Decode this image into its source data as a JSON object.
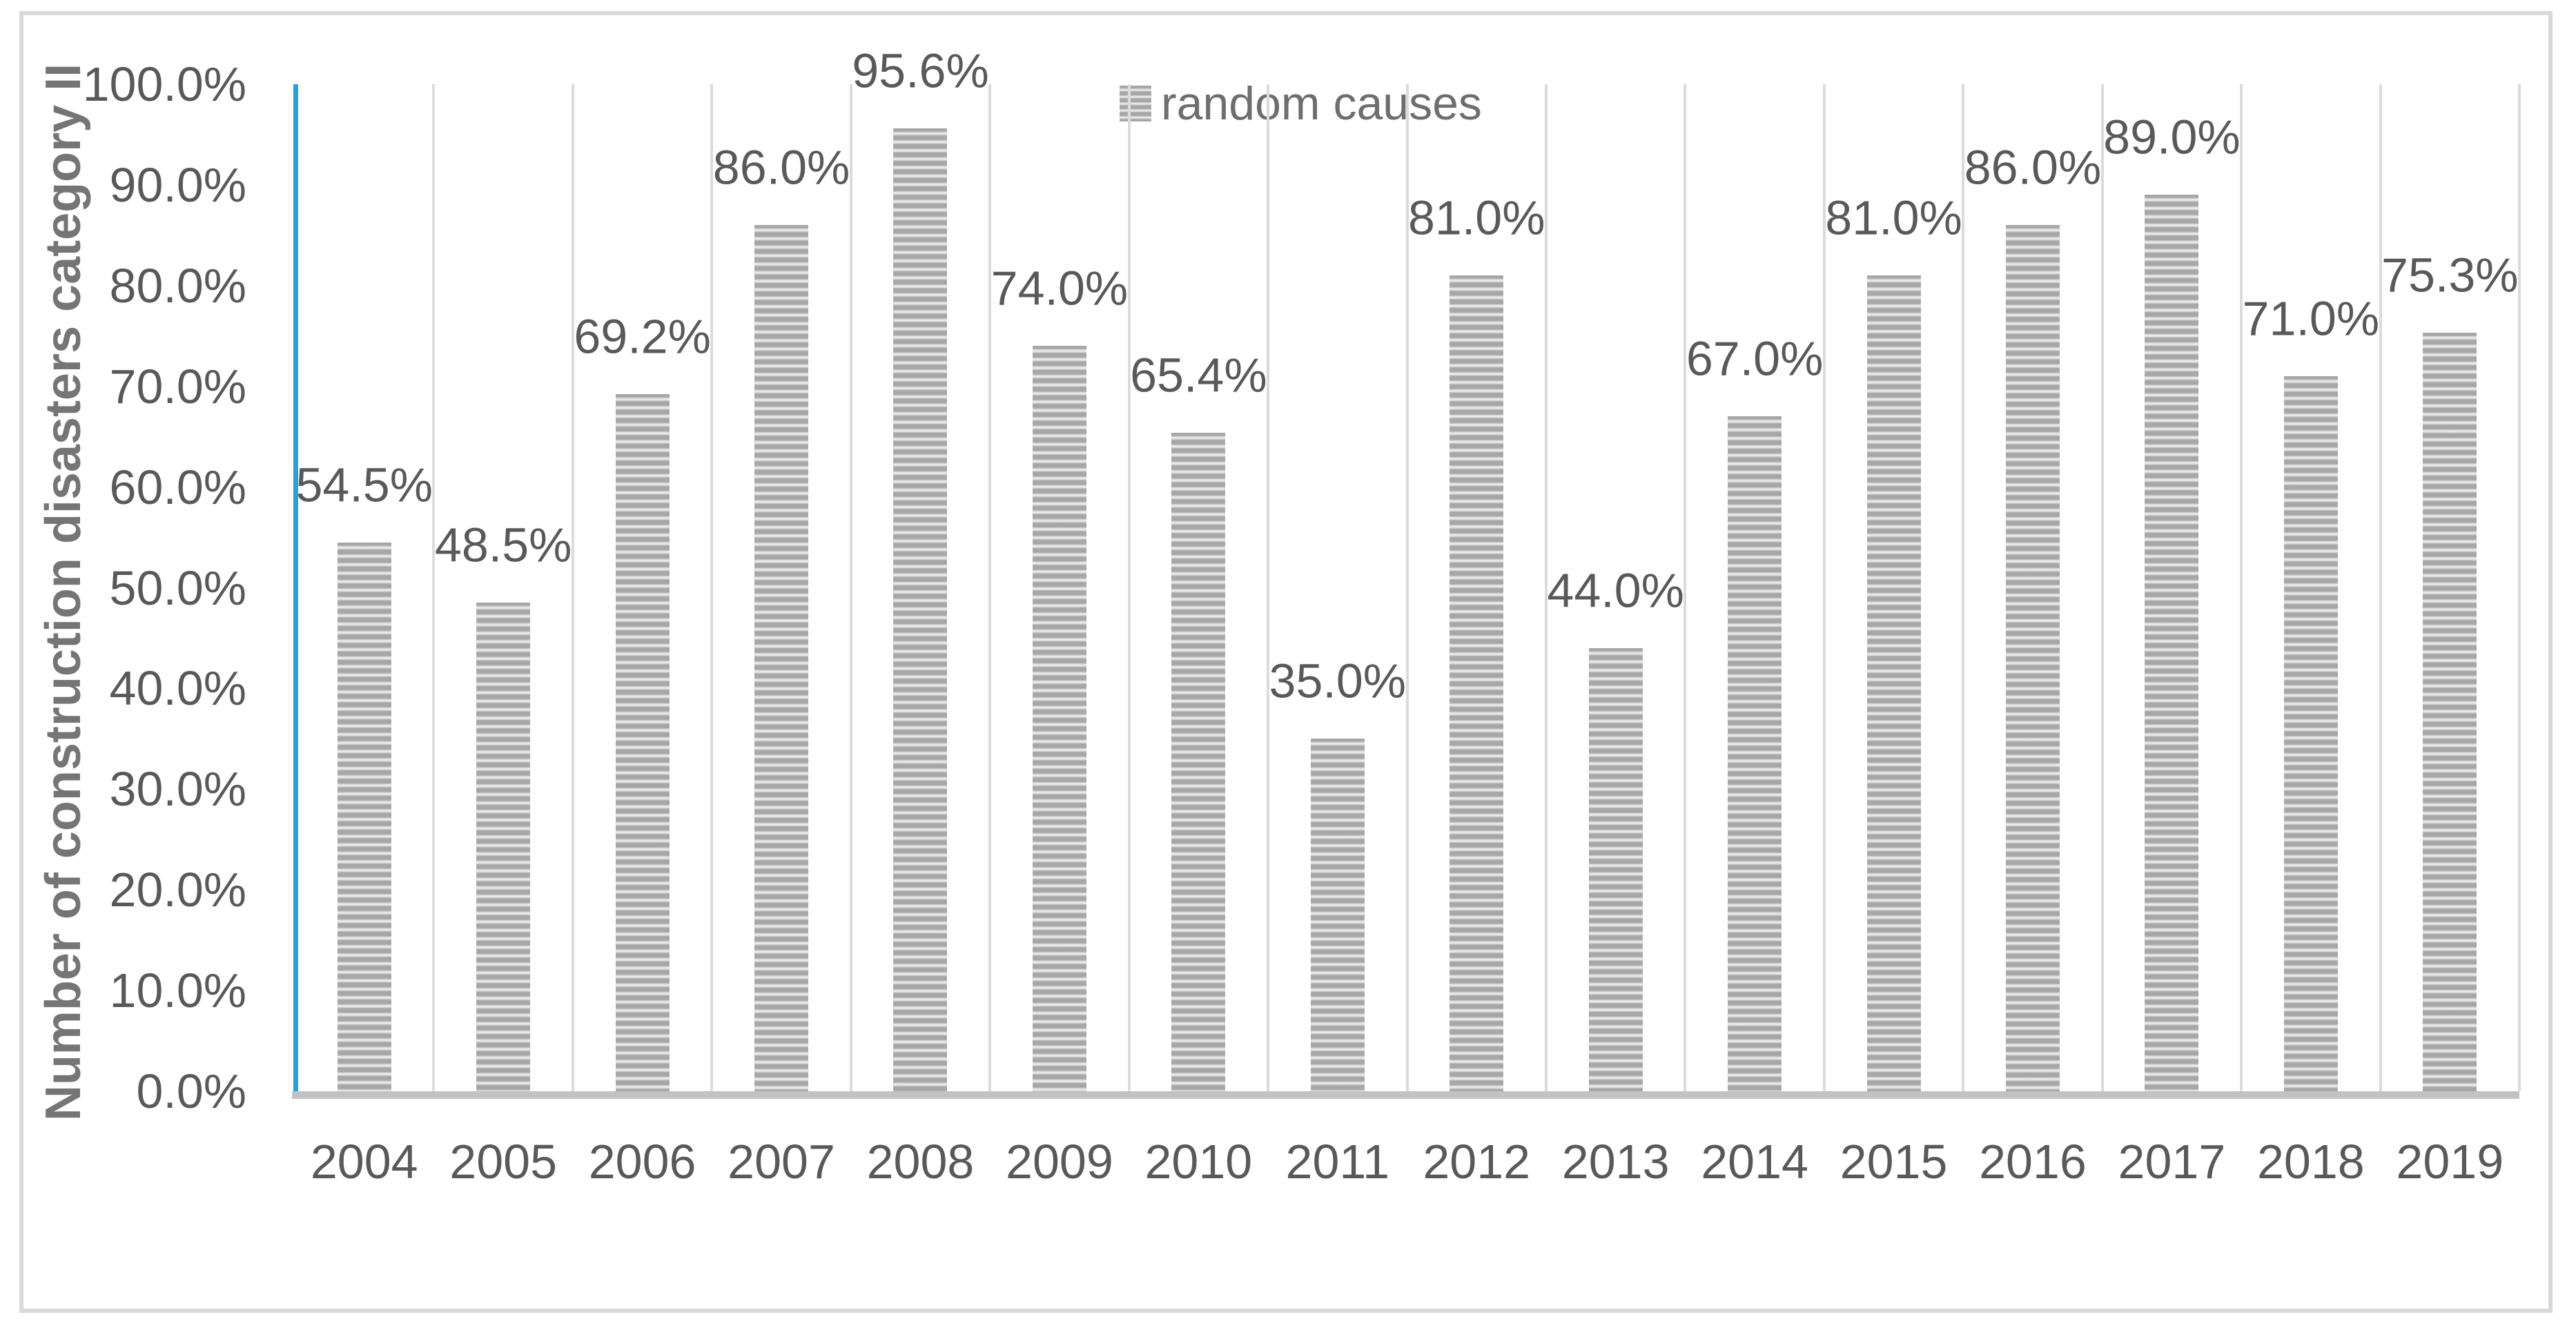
{
  "chart_data": {
    "type": "bar",
    "title": "",
    "xlabel": "",
    "ylabel": "Number of construction disasters category II",
    "categories": [
      "2004",
      "2005",
      "2006",
      "2007",
      "2008",
      "2009",
      "2010",
      "2011",
      "2012",
      "2013",
      "2014",
      "2015",
      "2016",
      "2017",
      "2018",
      "2019"
    ],
    "series": [
      {
        "name": "random causes",
        "values": [
          54.5,
          48.5,
          69.2,
          86.0,
          95.6,
          74.0,
          65.4,
          35.0,
          81.0,
          44.0,
          67.0,
          81.0,
          86.0,
          89.0,
          71.0,
          75.3
        ]
      }
    ],
    "data_labels": [
      "54.5%",
      "48.5%",
      "69.2%",
      "86.0%",
      "95.6%",
      "74.0%",
      "65.4%",
      "35.0%",
      "81.0%",
      "44.0%",
      "67.0%",
      "81.0%",
      "86.0%",
      "89.0%",
      "71.0%",
      "75.3%"
    ],
    "y_ticks": [
      "0.0%",
      "10.0%",
      "20.0%",
      "30.0%",
      "40.0%",
      "50.0%",
      "60.0%",
      "70.0%",
      "80.0%",
      "90.0%",
      "100.0%"
    ],
    "y_tick_values": [
      0,
      10,
      20,
      30,
      40,
      50,
      60,
      70,
      80,
      90,
      100
    ],
    "ylim": [
      0,
      100
    ],
    "grid": "vertical-only",
    "legend": {
      "label": "random causes",
      "position": "top-center",
      "swatch": "horizontal-striped-gray"
    }
  },
  "colors": {
    "bar_stripe_dark": "#a7a7a7",
    "bar_stripe_light": "#f0f0f0",
    "y_axis_line": "#2d9fd6",
    "x_axis_line": "#c2c2c2",
    "gridline": "#dbdbdb",
    "tick_text": "#595959",
    "data_label_text": "#595959",
    "legend_text": "#6e6e6e",
    "axis_title_text": "#757575",
    "chart_border": "#d9d9d9"
  }
}
